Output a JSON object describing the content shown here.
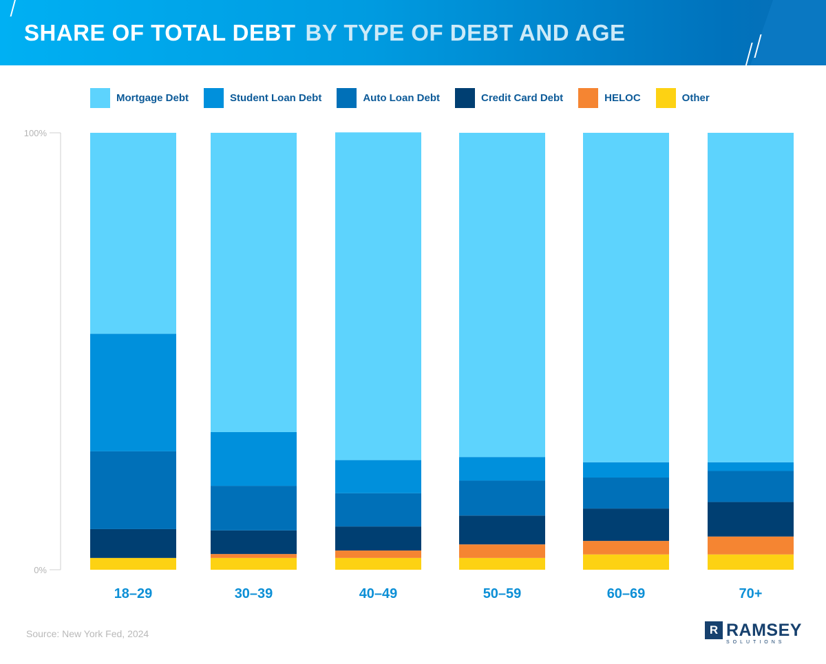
{
  "header": {
    "title_bold": "SHARE OF TOTAL DEBT",
    "title_light": "BY TYPE OF DEBT AND AGE"
  },
  "colors": {
    "Mortgage Debt": "#5dd3fd",
    "Student Loan Debt": "#0090dc",
    "Auto Loan Debt": "#0070b8",
    "Credit Card Debt": "#003f72",
    "HELOC": "#f58532",
    "Other": "#fdd213"
  },
  "chart_data": {
    "type": "bar",
    "stacked": true,
    "title": "SHARE OF TOTAL DEBT BY TYPE OF DEBT AND AGE",
    "categories": [
      "18–29",
      "30–39",
      "40–49",
      "50–59",
      "60–69",
      "70+"
    ],
    "ylim": [
      0,
      100
    ],
    "yticks": [
      "0%",
      "100%"
    ],
    "legend_position": "top",
    "grid": false,
    "series": [
      {
        "name": "Mortgage Debt",
        "values": [
          46.0,
          68.5,
          75.0,
          74.2,
          75.4,
          75.4
        ]
      },
      {
        "name": "Student Loan Debt",
        "values": [
          26.9,
          12.3,
          7.6,
          5.4,
          3.5,
          2.0
        ]
      },
      {
        "name": "Auto Loan Debt",
        "values": [
          17.8,
          10.2,
          7.6,
          8.0,
          7.1,
          7.1
        ]
      },
      {
        "name": "Credit Card Debt",
        "values": [
          6.6,
          5.4,
          5.5,
          6.6,
          7.4,
          7.9
        ]
      },
      {
        "name": "HELOC",
        "values": [
          0.0,
          0.9,
          1.7,
          3.1,
          3.1,
          4.1
        ]
      },
      {
        "name": "Other",
        "values": [
          2.7,
          2.7,
          2.7,
          2.7,
          3.5,
          3.5
        ]
      }
    ]
  },
  "footer": {
    "source": "Source: New York Fed, 2024",
    "logo_name": "RAMSEY",
    "logo_sub": "SOLUTIONS",
    "logo_mark": "R"
  }
}
